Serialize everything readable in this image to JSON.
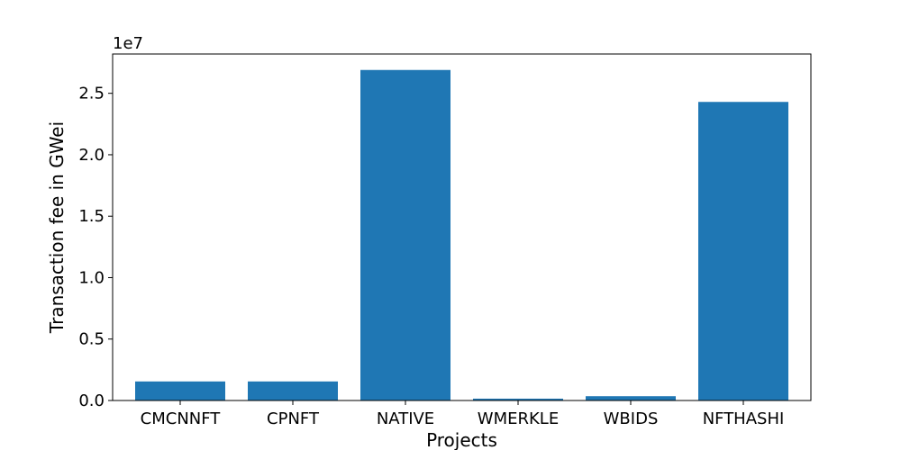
{
  "chart_data": {
    "type": "bar",
    "categories": [
      "CMCNNFT",
      "CPNFT",
      "NATIVE",
      "WMERKLE",
      "WBIDS",
      "NFTHASHI"
    ],
    "values": [
      1550000,
      1550000,
      26900000,
      150000,
      350000,
      24300000
    ],
    "xlabel": "Projects",
    "ylabel": "Transaction fee in GWei",
    "offset_label": "1e7",
    "ylim": [
      0,
      28200000
    ],
    "yticks": [
      0,
      5000000,
      10000000,
      15000000,
      20000000,
      25000000
    ],
    "ytick_labels": [
      "0.0",
      "0.5",
      "1.0",
      "1.5",
      "2.0",
      "2.5"
    ],
    "grid": false,
    "bar_color": "#1f77b4"
  }
}
